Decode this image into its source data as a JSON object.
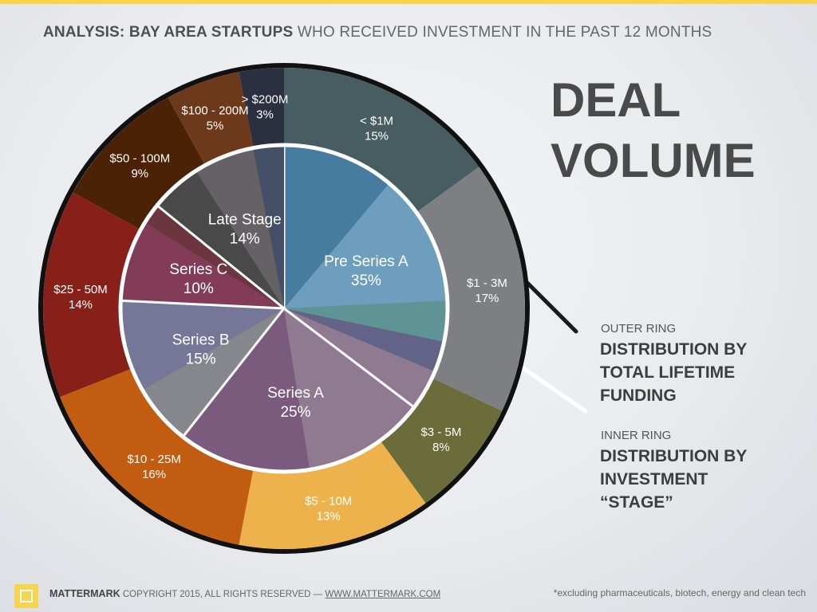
{
  "header": {
    "bold": "ANALYSIS: BAY AREA STARTUPS",
    "rest": "WHO RECEIVED INVESTMENT IN THE PAST 12 MONTHS"
  },
  "title": {
    "line1": "DEAL",
    "line2": "VOLUME"
  },
  "legend": {
    "outer_small": "OUTER RING",
    "outer_big_1": "DISTRIBUTION BY",
    "outer_big_2": "TOTAL LIFETIME",
    "outer_big_3": "FUNDING",
    "inner_small": "INNER RING",
    "inner_big_1": "DISTRIBUTION BY",
    "inner_big_2": "INVESTMENT",
    "inner_big_3": "“STAGE”"
  },
  "footer": {
    "brand": "MATTERMARK",
    "copyright": "COPYRIGHT 2015, ALL RIGHTS RESERVED —",
    "url": "WWW.MATTERMARK.COM",
    "note": "*excluding pharmaceuticals, biotech, energy and clean tech"
  },
  "colors": {
    "top_bar": "#f6d54c",
    "logo": "#f6d54c",
    "ring_border": "#111111",
    "inner_border": "#ffffff"
  },
  "chart_data": [
    {
      "type": "pie",
      "name": "outer ring",
      "categories": [
        "< $1M",
        "$1 - 3M",
        "$3 - 5M",
        "$5 - 10M",
        "$10 - 25M",
        "$25 - 50M",
        "$50 - 100M",
        "$100 - 200M",
        "> $200M"
      ],
      "values": [
        15,
        17,
        8,
        13,
        16,
        14,
        9,
        5,
        3
      ],
      "labels": [
        "15%",
        "17%",
        "8%",
        "13%",
        "16%",
        "14%",
        "9%",
        "5%",
        "3%"
      ],
      "colors": [
        "#485d62",
        "#7d7f82",
        "#6a6c3a",
        "#eeb24d",
        "#c25c10",
        "#88201a",
        "#4b2205",
        "#6c391a",
        "#2b2f40"
      ]
    },
    {
      "type": "pie",
      "name": "inner ring",
      "categories": [
        "Pre Series A",
        "Series A",
        "Series B",
        "Series C",
        "Late Stage"
      ],
      "values": [
        35,
        25,
        15,
        10,
        14
      ],
      "labels": [
        "35%",
        "25%",
        "15%",
        "10%",
        "14%"
      ],
      "colors": [
        "#4c87ad",
        "#8a7293",
        "#86878d",
        "#823c58",
        "#555354"
      ],
      "sub_slices": [
        {
          "values": [
            11,
            13,
            4,
            3,
            4
          ],
          "colors": [
            "#467c9f",
            "#6e9ebd",
            "#5f9496",
            "#636387",
            "#8f7a92"
          ]
        },
        {
          "values": [
            12,
            13
          ],
          "colors": [
            "#8f7a92",
            "#7a5b7d"
          ]
        },
        {
          "values": [
            6,
            9
          ],
          "colors": [
            "#86878d",
            "#767699"
          ]
        },
        {
          "values": [
            8,
            2
          ],
          "colors": [
            "#823c58",
            "#6d3540"
          ]
        },
        {
          "values": [
            5,
            6,
            3
          ],
          "colors": [
            "#4a494a",
            "#656164",
            "#445067"
          ]
        }
      ]
    }
  ]
}
